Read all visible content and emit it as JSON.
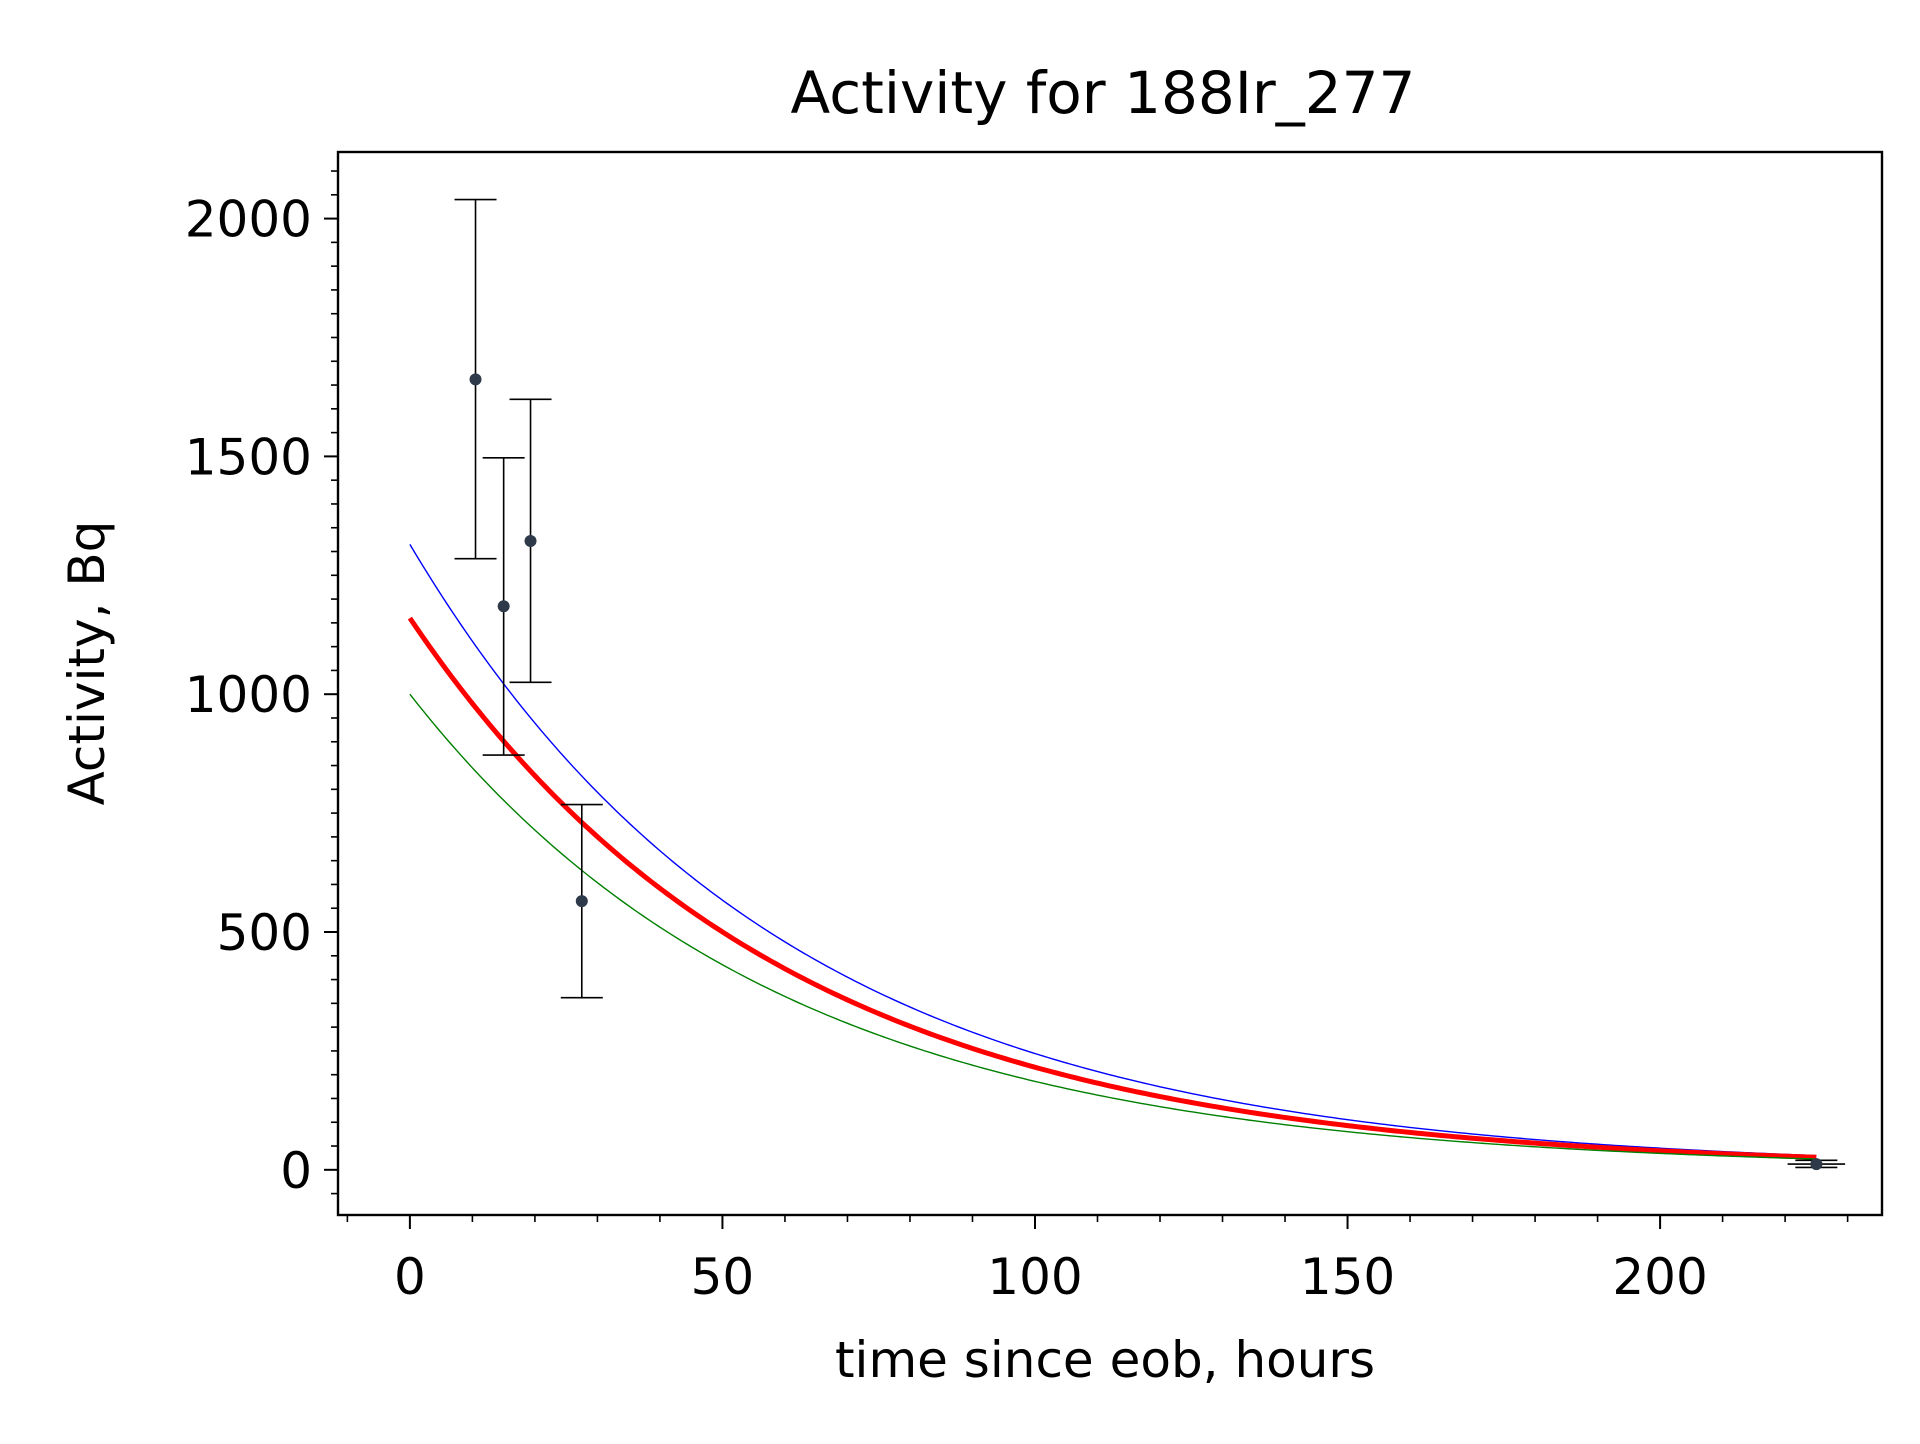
{
  "chart_data": {
    "type": "scatter",
    "title": "Activity for 188Ir_277",
    "xlabel": "time since eob, hours",
    "ylabel": "Activity, Bq",
    "xlim": [
      -11.5,
      235.5
    ],
    "ylim": [
      -95,
      2140
    ],
    "xticks": [
      0,
      50,
      100,
      150,
      200
    ],
    "yticks": [
      0,
      500,
      1000,
      1500,
      2000
    ],
    "grid": false,
    "legend": "none",
    "points": [
      {
        "x": 10.5,
        "y": 1662,
        "err_lo": 1285,
        "err_hi": 2040,
        "xerr": 0
      },
      {
        "x": 15.0,
        "y": 1185,
        "err_lo": 872,
        "err_hi": 1497,
        "xerr": 0
      },
      {
        "x": 19.3,
        "y": 1322,
        "err_lo": 1025,
        "err_hi": 1620,
        "xerr": 0
      },
      {
        "x": 27.5,
        "y": 565,
        "err_lo": 362,
        "err_hi": 768,
        "xerr": 0
      },
      {
        "x": 225.0,
        "y": 12,
        "err_lo": 5,
        "err_hi": 20,
        "xerr": 3
      }
    ],
    "curves": [
      {
        "color": "#0000ff",
        "A0": 1315,
        "half_life_hours": 41.2,
        "x_range": [
          0,
          225
        ],
        "stroke_width": 1.4
      },
      {
        "color": "#ff0000",
        "A0": 1160,
        "half_life_hours": 41.2,
        "x_range": [
          0,
          225
        ],
        "stroke_width": 5
      },
      {
        "color": "#008000",
        "A0": 1000,
        "half_life_hours": 41.2,
        "x_range": [
          0,
          225
        ],
        "stroke_width": 1.4
      }
    ],
    "point_color": "#2e3a4a",
    "errorbar_color": "#000000"
  }
}
